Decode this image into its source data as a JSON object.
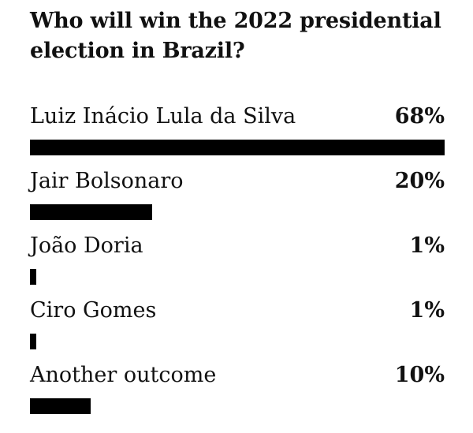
{
  "chart_data": {
    "type": "bar",
    "orientation": "horizontal",
    "title": "Who will win the 2022 presidential election in Brazil?",
    "categories": [
      "Luiz Inácio Lula da Silva",
      "Jair Bolsonaro",
      "João Doria",
      "Ciro Gomes",
      "Another outcome"
    ],
    "values": [
      68,
      20,
      1,
      1,
      10
    ],
    "value_labels": [
      "68%",
      "20%",
      "1%",
      "1%",
      "10%"
    ],
    "unit": "%",
    "xlim": [
      0,
      68
    ],
    "grid": false,
    "bar_color": "#000000"
  }
}
